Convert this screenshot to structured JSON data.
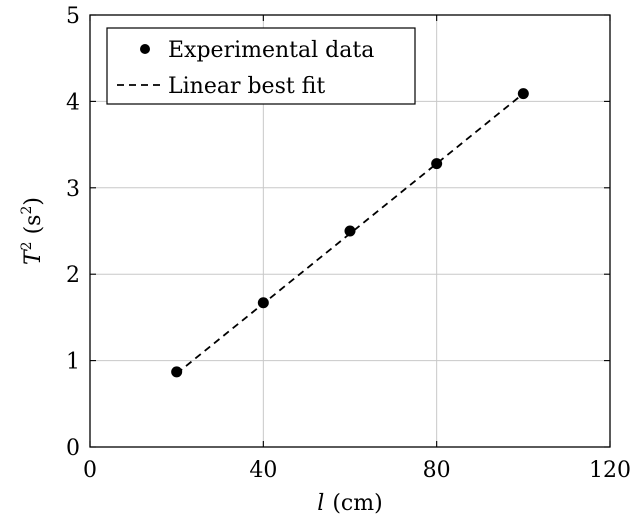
{
  "chart_data": {
    "type": "scatter",
    "xlabel": {
      "var": "l",
      "unit": "(cm)"
    },
    "ylabel": {
      "var": "T",
      "sup": "2",
      "unit_open": " (s",
      "unit_sup": "2",
      "unit_close": ")"
    },
    "xlim": [
      0,
      120
    ],
    "ylim": [
      0,
      5
    ],
    "x_ticks": [
      "0",
      "40",
      "80",
      "120"
    ],
    "y_ticks": [
      "0",
      "1",
      "2",
      "3",
      "4",
      "5"
    ],
    "grid": true,
    "legend_placement": "top-left",
    "series": [
      {
        "name": "Experimental data",
        "kind": "scatter",
        "color": "#000000",
        "points": [
          {
            "x": 20,
            "y": 0.87
          },
          {
            "x": 40,
            "y": 1.67
          },
          {
            "x": 60,
            "y": 2.5
          },
          {
            "x": 80,
            "y": 3.28
          },
          {
            "x": 100,
            "y": 4.09
          }
        ]
      },
      {
        "name": "Linear best fit",
        "kind": "line",
        "style": "dashed",
        "color": "#000000",
        "points": [
          {
            "x": 20,
            "y": 0.85
          },
          {
            "x": 100,
            "y": 4.09
          }
        ]
      }
    ]
  }
}
